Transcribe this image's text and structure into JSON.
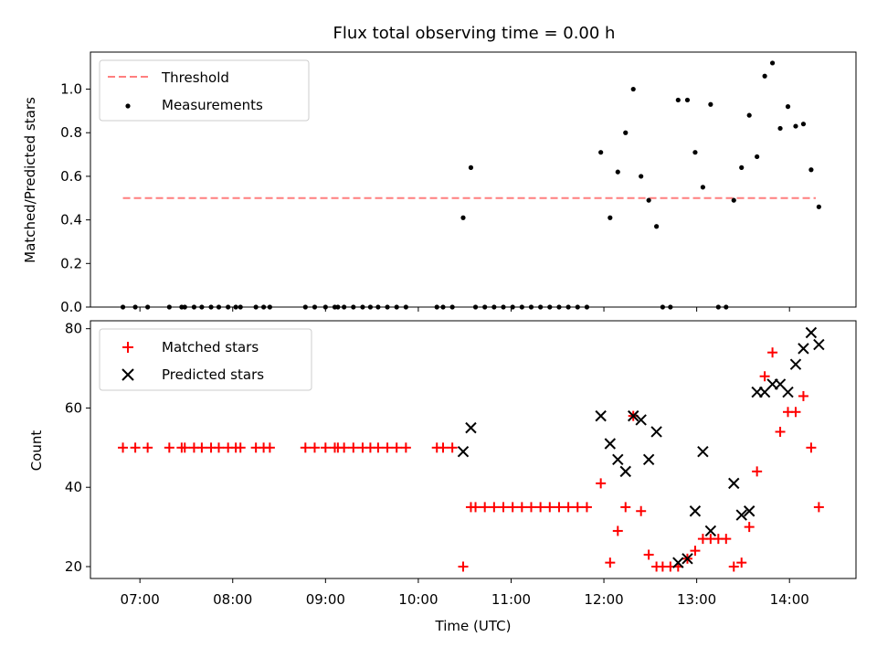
{
  "chart_data": [
    {
      "type": "scatter",
      "title": "Flux total observing time = 0.00 h",
      "ylabel": "Matched/Predicted stars",
      "ylim": [
        0,
        1.17
      ],
      "yticks": [
        "0.0",
        "0.2",
        "0.4",
        "0.6",
        "0.8",
        "1.0"
      ],
      "threshold": {
        "name": "Threshold",
        "value": 0.5,
        "x_range": [
          "06:49",
          "14:17"
        ],
        "color": "#ff7f7f",
        "style": "dashed"
      },
      "legend": {
        "position": "upper-left",
        "entries": [
          "Threshold",
          "Measurements"
        ]
      },
      "series": [
        {
          "name": "Measurements",
          "color": "#000000",
          "marker": "dot",
          "points": [
            [
              "06:49",
              0
            ],
            [
              "06:57",
              0
            ],
            [
              "07:05",
              0
            ],
            [
              "07:19",
              0
            ],
            [
              "07:27",
              0
            ],
            [
              "07:29",
              0
            ],
            [
              "07:35",
              0
            ],
            [
              "07:40",
              0
            ],
            [
              "07:46",
              0
            ],
            [
              "07:51",
              0
            ],
            [
              "07:57",
              0
            ],
            [
              "08:02",
              0
            ],
            [
              "08:05",
              0
            ],
            [
              "08:15",
              0
            ],
            [
              "08:20",
              0
            ],
            [
              "08:24",
              0
            ],
            [
              "08:47",
              0
            ],
            [
              "08:53",
              0
            ],
            [
              "09:00",
              0
            ],
            [
              "09:06",
              0
            ],
            [
              "09:08",
              0
            ],
            [
              "09:12",
              0
            ],
            [
              "09:18",
              0
            ],
            [
              "09:24",
              0
            ],
            [
              "09:29",
              0
            ],
            [
              "09:34",
              0
            ],
            [
              "09:40",
              0
            ],
            [
              "09:46",
              0
            ],
            [
              "09:52",
              0
            ],
            [
              "10:12",
              0
            ],
            [
              "10:16",
              0
            ],
            [
              "10:22",
              0
            ],
            [
              "10:29",
              0.41
            ],
            [
              "10:34",
              0.64
            ],
            [
              "10:37",
              0
            ],
            [
              "10:43",
              0
            ],
            [
              "10:49",
              0
            ],
            [
              "10:55",
              0
            ],
            [
              "11:01",
              0
            ],
            [
              "11:07",
              0
            ],
            [
              "11:13",
              0
            ],
            [
              "11:19",
              0
            ],
            [
              "11:25",
              0
            ],
            [
              "11:31",
              0
            ],
            [
              "11:37",
              0
            ],
            [
              "11:43",
              0
            ],
            [
              "11:49",
              0
            ],
            [
              "11:58",
              0.71
            ],
            [
              "12:04",
              0.41
            ],
            [
              "12:09",
              0.62
            ],
            [
              "12:14",
              0.8
            ],
            [
              "12:19",
              1.0
            ],
            [
              "12:24",
              0.6
            ],
            [
              "12:29",
              0.49
            ],
            [
              "12:34",
              0.37
            ],
            [
              "12:38",
              0
            ],
            [
              "12:43",
              0
            ],
            [
              "12:48",
              0.95
            ],
            [
              "12:54",
              0.95
            ],
            [
              "12:59",
              0.71
            ],
            [
              "13:04",
              0.55
            ],
            [
              "13:09",
              0.93
            ],
            [
              "13:14",
              0
            ],
            [
              "13:19",
              0
            ],
            [
              "13:24",
              0.49
            ],
            [
              "13:29",
              0.64
            ],
            [
              "13:34",
              0.88
            ],
            [
              "13:39",
              0.69
            ],
            [
              "13:44",
              1.06
            ],
            [
              "13:49",
              1.12
            ],
            [
              "13:54",
              0.82
            ],
            [
              "13:59",
              0.92
            ],
            [
              "14:04",
              0.83
            ],
            [
              "14:09",
              0.84
            ],
            [
              "14:14",
              0.63
            ],
            [
              "14:19",
              0.46
            ]
          ]
        }
      ]
    },
    {
      "type": "scatter",
      "xlabel": "Time (UTC)",
      "ylabel": "Count",
      "xlim": [
        "06:28",
        "14:43"
      ],
      "xticks": [
        "07:00",
        "08:00",
        "09:00",
        "10:00",
        "11:00",
        "12:00",
        "13:00",
        "14:00"
      ],
      "ylim": [
        17,
        82
      ],
      "yticks": [
        "20",
        "40",
        "60",
        "80"
      ],
      "legend": {
        "position": "upper-left",
        "entries": [
          "Matched stars",
          "Predicted stars"
        ]
      },
      "series": [
        {
          "name": "Matched stars",
          "color": "#ff0000",
          "marker": "plus",
          "points": [
            [
              "06:49",
              50
            ],
            [
              "06:57",
              50
            ],
            [
              "07:05",
              50
            ],
            [
              "07:19",
              50
            ],
            [
              "07:27",
              50
            ],
            [
              "07:29",
              50
            ],
            [
              "07:35",
              50
            ],
            [
              "07:40",
              50
            ],
            [
              "07:46",
              50
            ],
            [
              "07:51",
              50
            ],
            [
              "07:57",
              50
            ],
            [
              "08:02",
              50
            ],
            [
              "08:05",
              50
            ],
            [
              "08:15",
              50
            ],
            [
              "08:20",
              50
            ],
            [
              "08:24",
              50
            ],
            [
              "08:47",
              50
            ],
            [
              "08:53",
              50
            ],
            [
              "09:00",
              50
            ],
            [
              "09:06",
              50
            ],
            [
              "09:08",
              50
            ],
            [
              "09:12",
              50
            ],
            [
              "09:18",
              50
            ],
            [
              "09:24",
              50
            ],
            [
              "09:29",
              50
            ],
            [
              "09:34",
              50
            ],
            [
              "09:40",
              50
            ],
            [
              "09:46",
              50
            ],
            [
              "09:52",
              50
            ],
            [
              "10:12",
              50
            ],
            [
              "10:16",
              50
            ],
            [
              "10:22",
              50
            ],
            [
              "10:29",
              20
            ],
            [
              "10:34",
              35
            ],
            [
              "10:37",
              35
            ],
            [
              "10:43",
              35
            ],
            [
              "10:49",
              35
            ],
            [
              "10:55",
              35
            ],
            [
              "11:01",
              35
            ],
            [
              "11:07",
              35
            ],
            [
              "11:13",
              35
            ],
            [
              "11:19",
              35
            ],
            [
              "11:25",
              35
            ],
            [
              "11:31",
              35
            ],
            [
              "11:37",
              35
            ],
            [
              "11:43",
              35
            ],
            [
              "11:49",
              35
            ],
            [
              "11:58",
              41
            ],
            [
              "12:04",
              21
            ],
            [
              "12:09",
              29
            ],
            [
              "12:14",
              35
            ],
            [
              "12:19",
              58
            ],
            [
              "12:24",
              34
            ],
            [
              "12:29",
              23
            ],
            [
              "12:34",
              20
            ],
            [
              "12:38",
              20
            ],
            [
              "12:43",
              20
            ],
            [
              "12:48",
              20
            ],
            [
              "12:54",
              22
            ],
            [
              "12:59",
              24
            ],
            [
              "13:04",
              27
            ],
            [
              "13:09",
              27
            ],
            [
              "13:14",
              27
            ],
            [
              "13:19",
              27
            ],
            [
              "13:24",
              20
            ],
            [
              "13:29",
              21
            ],
            [
              "13:34",
              30
            ],
            [
              "13:39",
              44
            ],
            [
              "13:44",
              68
            ],
            [
              "13:49",
              74
            ],
            [
              "13:54",
              54
            ],
            [
              "13:59",
              59
            ],
            [
              "14:04",
              59
            ],
            [
              "14:09",
              63
            ],
            [
              "14:14",
              50
            ],
            [
              "14:19",
              35
            ]
          ]
        },
        {
          "name": "Predicted stars",
          "color": "#000000",
          "marker": "x",
          "points": [
            [
              "10:29",
              49
            ],
            [
              "10:34",
              55
            ],
            [
              "11:58",
              58
            ],
            [
              "12:04",
              51
            ],
            [
              "12:09",
              47
            ],
            [
              "12:14",
              44
            ],
            [
              "12:19",
              58
            ],
            [
              "12:24",
              57
            ],
            [
              "12:29",
              47
            ],
            [
              "12:34",
              54
            ],
            [
              "12:48",
              21
            ],
            [
              "12:54",
              22
            ],
            [
              "12:59",
              34
            ],
            [
              "13:04",
              49
            ],
            [
              "13:09",
              29
            ],
            [
              "13:24",
              41
            ],
            [
              "13:29",
              33
            ],
            [
              "13:34",
              34
            ],
            [
              "13:39",
              64
            ],
            [
              "13:44",
              64
            ],
            [
              "13:49",
              66
            ],
            [
              "13:54",
              66
            ],
            [
              "13:59",
              64
            ],
            [
              "14:04",
              71
            ],
            [
              "14:09",
              75
            ],
            [
              "14:14",
              79
            ],
            [
              "14:19",
              76
            ]
          ]
        }
      ]
    }
  ]
}
